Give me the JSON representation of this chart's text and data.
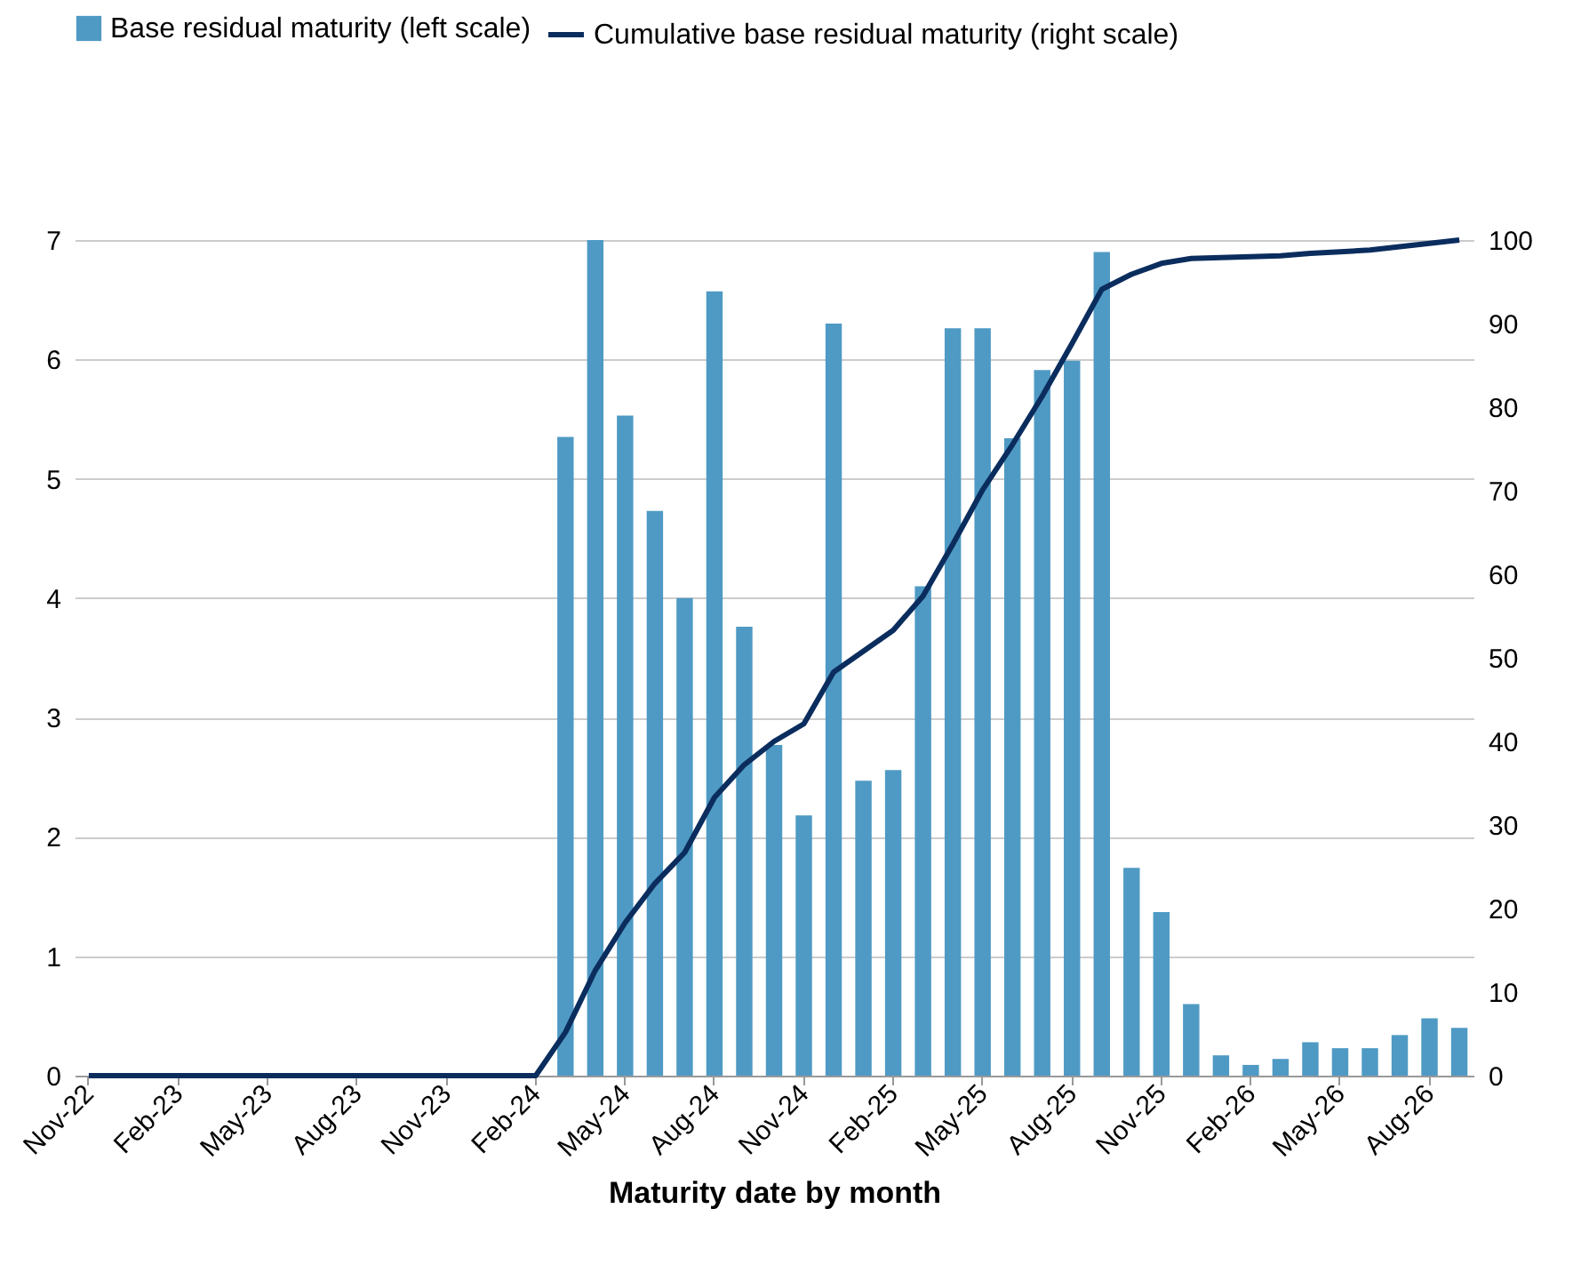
{
  "chart_data": {
    "type": "bar",
    "xlabel": "Maturity date by month",
    "categories": [
      "Nov-22",
      null,
      null,
      "Feb-23",
      null,
      null,
      "May-23",
      null,
      null,
      "Aug-23",
      null,
      null,
      "Nov-23",
      null,
      null,
      "Feb-24",
      null,
      null,
      "May-24",
      null,
      null,
      "Aug-24",
      null,
      null,
      "Nov-24",
      null,
      null,
      "Feb-25",
      null,
      null,
      "May-25",
      null,
      null,
      "Aug-25",
      null,
      null,
      "Nov-25",
      null,
      null,
      "Feb-26",
      null,
      null,
      "May-26",
      null,
      null,
      "Aug-26",
      null
    ],
    "series": [
      {
        "name": "Base residual maturity (left scale)",
        "color": "#4f9ac4",
        "values": [
          0,
          0,
          0,
          0,
          0,
          0,
          0,
          0,
          0,
          0,
          0,
          0,
          0,
          0,
          0,
          0,
          5.35,
          7.0,
          5.53,
          4.73,
          4.0,
          6.57,
          3.76,
          2.77,
          2.18,
          6.3,
          2.47,
          2.56,
          4.1,
          6.26,
          6.26,
          5.34,
          5.91,
          5.99,
          6.9,
          1.74,
          1.37,
          0.6,
          0.17,
          0.09,
          0.14,
          0.28,
          0.23,
          0.23,
          0.34,
          0.48,
          0.4
        ]
      },
      {
        "name": "Cumulative base residual maturity (right scale)",
        "type": "line",
        "axis": "y2",
        "color": "#0b2d5e",
        "values": [
          0,
          0,
          0,
          0,
          0,
          0,
          0,
          0,
          0,
          0,
          0,
          0,
          0,
          0,
          0,
          0,
          5.2,
          12.6,
          18.3,
          23.0,
          26.7,
          33.3,
          37.2,
          40.0,
          42.1,
          48.3,
          50.8,
          53.3,
          57.4,
          63.6,
          70.1,
          75.5,
          81.3,
          87.6,
          94.1,
          95.9,
          97.2,
          97.8,
          97.9,
          98.0,
          98.1,
          98.4,
          98.6,
          98.8,
          99.2,
          99.6,
          100
        ]
      }
    ],
    "ylim": [
      0,
      7
    ],
    "yticks": [
      0,
      1,
      2,
      3,
      4,
      5,
      6,
      7
    ],
    "y2lim": [
      0,
      100
    ],
    "y2ticks": [
      0,
      10,
      20,
      30,
      40,
      50,
      60,
      70,
      80,
      90,
      100
    ],
    "grid": "y",
    "legend": "top"
  }
}
